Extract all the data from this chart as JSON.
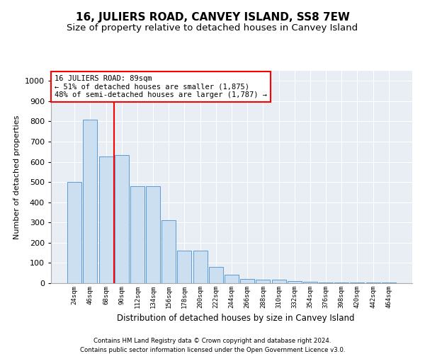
{
  "title": "16, JULIERS ROAD, CANVEY ISLAND, SS8 7EW",
  "subtitle": "Size of property relative to detached houses in Canvey Island",
  "xlabel": "Distribution of detached houses by size in Canvey Island",
  "ylabel": "Number of detached properties",
  "footnote1": "Contains HM Land Registry data © Crown copyright and database right 2024.",
  "footnote2": "Contains public sector information licensed under the Open Government Licence v3.0.",
  "categories": [
    "24sqm",
    "46sqm",
    "68sqm",
    "90sqm",
    "112sqm",
    "134sqm",
    "156sqm",
    "178sqm",
    "200sqm",
    "222sqm",
    "244sqm",
    "266sqm",
    "288sqm",
    "310sqm",
    "332sqm",
    "354sqm",
    "376sqm",
    "398sqm",
    "420sqm",
    "442sqm",
    "464sqm"
  ],
  "values": [
    500,
    808,
    625,
    635,
    480,
    480,
    310,
    160,
    160,
    82,
    42,
    20,
    18,
    18,
    11,
    8,
    5,
    4,
    3,
    2,
    2
  ],
  "bar_color": "#ccdff0",
  "bar_edge_color": "#5b9bd5",
  "vline_index": 3,
  "vline_color": "red",
  "annotation_text": "16 JULIERS ROAD: 89sqm\n← 51% of detached houses are smaller (1,875)\n48% of semi-detached houses are larger (1,787) →",
  "annotation_box_color": "white",
  "annotation_box_edge_color": "red",
  "ylim": [
    0,
    1050
  ],
  "yticks": [
    0,
    100,
    200,
    300,
    400,
    500,
    600,
    700,
    800,
    900,
    1000
  ],
  "background_color": "#e8eef4",
  "grid_color": "white",
  "title_fontsize": 11,
  "subtitle_fontsize": 9.5
}
